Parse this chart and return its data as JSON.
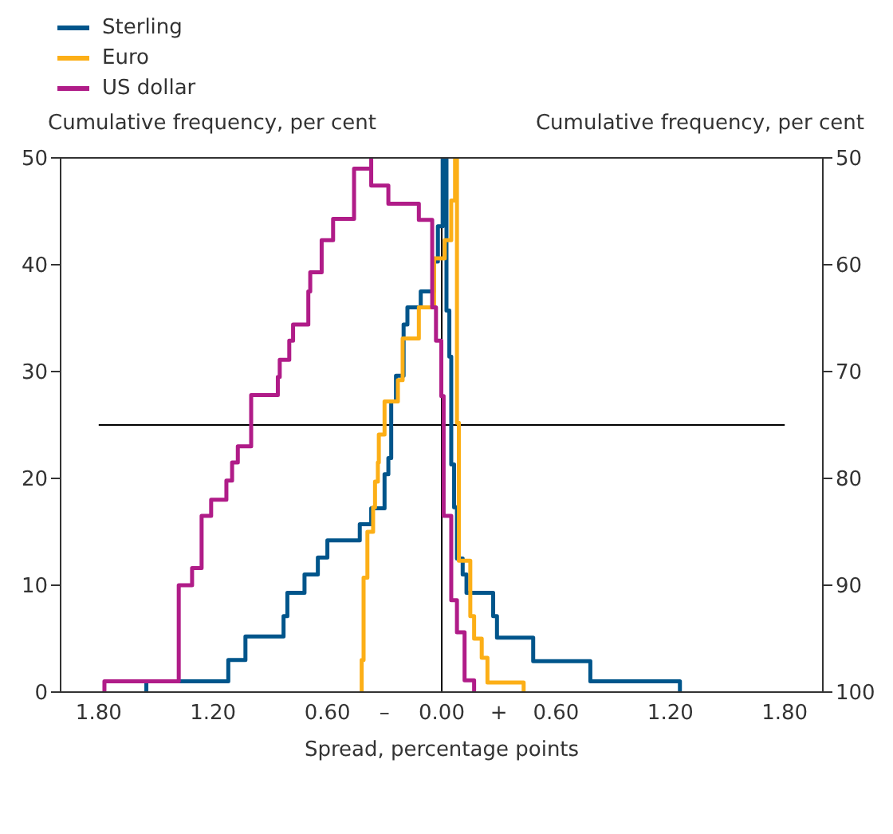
{
  "chart_data": {
    "type": "step",
    "xlabel": "Spread, percentage points",
    "ylabel": "Cumulative frequency, per cent",
    "y2label": "Cumulative frequency, per cent",
    "legend": "top left",
    "xlim": [
      -2,
      2
    ],
    "xticks": [
      {
        "value": -1.8,
        "label": "1.80"
      },
      {
        "value": -1.2,
        "label": "1.20"
      },
      {
        "value": -0.6,
        "label": "0.60"
      },
      {
        "value": -0.3,
        "label": "–"
      },
      {
        "value": 0,
        "label": "0.00"
      },
      {
        "value": 0.3,
        "label": "+"
      },
      {
        "value": 0.6,
        "label": "0.60"
      },
      {
        "value": 1.2,
        "label": "1.20"
      },
      {
        "value": 1.8,
        "label": "1.80"
      }
    ],
    "ylim": [
      0,
      50
    ],
    "yticks": [
      0,
      10,
      20,
      30,
      40,
      50
    ],
    "y2lim": [
      100,
      50
    ],
    "y2ticks": [
      50,
      60,
      70,
      80,
      90,
      100
    ],
    "ref_lines": [
      {
        "axis": "y",
        "value": 25,
        "color": "#000000"
      },
      {
        "axis": "x",
        "value": 0,
        "color": "#000000"
      }
    ],
    "series": [
      {
        "name": "Sterling",
        "color": "#00558b",
        "x": [
          -1.55,
          -1.55,
          -1.12,
          -1.03,
          -0.83,
          -0.81,
          -0.72,
          -0.65,
          -0.6,
          -0.43,
          -0.37,
          -0.3,
          -0.28,
          -0.265,
          -0.24,
          -0.2,
          -0.18,
          -0.11,
          -0.04,
          -0.02,
          0.005,
          0.025,
          0.04,
          0.05,
          0.065,
          0.08,
          0.11,
          0.13,
          0.27,
          0.29,
          0.48,
          0.78,
          1.25
        ],
        "values": [
          0,
          1,
          3,
          5.2,
          7.1,
          9.3,
          11,
          12.6,
          14.2,
          15.7,
          17.2,
          20.4,
          21.9,
          27.2,
          29.6,
          34.4,
          36,
          37.5,
          40.3,
          43.6,
          50,
          35.7,
          31.4,
          21.3,
          17.3,
          12.5,
          11,
          9.3,
          7.1,
          5.1,
          2.9,
          1,
          0
        ]
      },
      {
        "name": "Euro",
        "color": "#fcaf17",
        "x": [
          -0.42,
          -0.42,
          -0.41,
          -0.39,
          -0.36,
          -0.35,
          -0.335,
          -0.33,
          -0.3,
          -0.23,
          -0.205,
          -0.12,
          -0.04,
          0.016,
          0.05,
          0.07,
          0.08,
          0.09,
          0.15,
          0.17,
          0.21,
          0.24,
          0.43
        ],
        "values": [
          0,
          3,
          10.7,
          15,
          17.3,
          19.7,
          21.5,
          24.1,
          27.2,
          29.2,
          33.1,
          36,
          40.6,
          42.3,
          46,
          50,
          25.2,
          12.3,
          7.1,
          5,
          3.2,
          0.9,
          0
        ]
      },
      {
        "name": "US dollar",
        "color": "#b01c88",
        "x": [
          -1.77,
          -1.77,
          -1.38,
          -1.31,
          -1.26,
          -1.21,
          -1.13,
          -1.1,
          -1.07,
          -1,
          -0.86,
          -0.85,
          -0.8,
          -0.78,
          -0.7,
          -0.69,
          -0.63,
          -0.57,
          -0.46,
          -0.37,
          -0.37,
          -0.28,
          -0.12,
          -0.05,
          -0.03,
          -0.002,
          0.01,
          0.05,
          0.08,
          0.12,
          0.17
        ],
        "values": [
          0,
          1,
          10,
          11.6,
          16.5,
          18,
          19.8,
          21.5,
          23,
          27.8,
          29.5,
          31.1,
          32.9,
          34.4,
          37.5,
          39.3,
          42.3,
          44.3,
          49,
          50,
          47.4,
          45.7,
          44.2,
          36,
          32.9,
          27.7,
          16.5,
          8.6,
          5.6,
          1.1,
          0
        ]
      }
    ]
  }
}
